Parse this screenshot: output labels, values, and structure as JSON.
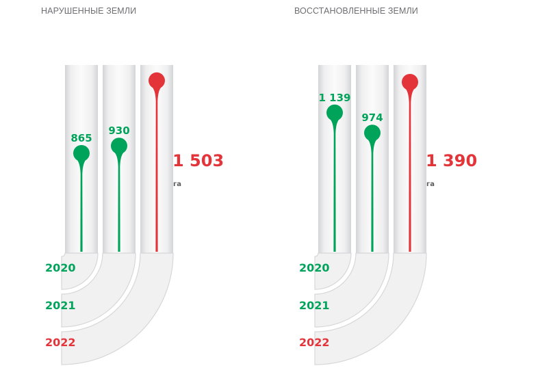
{
  "chart_data": [
    {
      "type": "bar",
      "title": "НАРУШЕННЫЕ ЗЕМЛИ",
      "categories": [
        "2020",
        "2021",
        "2022"
      ],
      "values": [
        865,
        930,
        1503
      ],
      "value_labels": [
        "865",
        "930",
        "1 503"
      ],
      "unit": "га",
      "ylim": [
        0,
        1640
      ],
      "category_colors": [
        "#00a35a",
        "#00a35a",
        "#e3343a"
      ],
      "highlight_category": "2022"
    },
    {
      "type": "bar",
      "title": "ВОССТАНОВЛЕННЫЕ ЗЕМЛИ",
      "categories": [
        "2020",
        "2021",
        "2022"
      ],
      "values": [
        1139,
        974,
        1390
      ],
      "value_labels": [
        "1 139",
        "974",
        "1 390"
      ],
      "unit": "га",
      "ylim": [
        0,
        1530
      ],
      "category_colors": [
        "#00a35a",
        "#00a35a",
        "#e3343a"
      ],
      "highlight_category": "2022"
    }
  ],
  "colors": {
    "green": "#00a35a",
    "red": "#e3343a",
    "title_gray": "#6d6e71",
    "unit_gray": "#58595b",
    "track_light": "#f2f2f2",
    "track_shadow": "#d7d8da"
  }
}
